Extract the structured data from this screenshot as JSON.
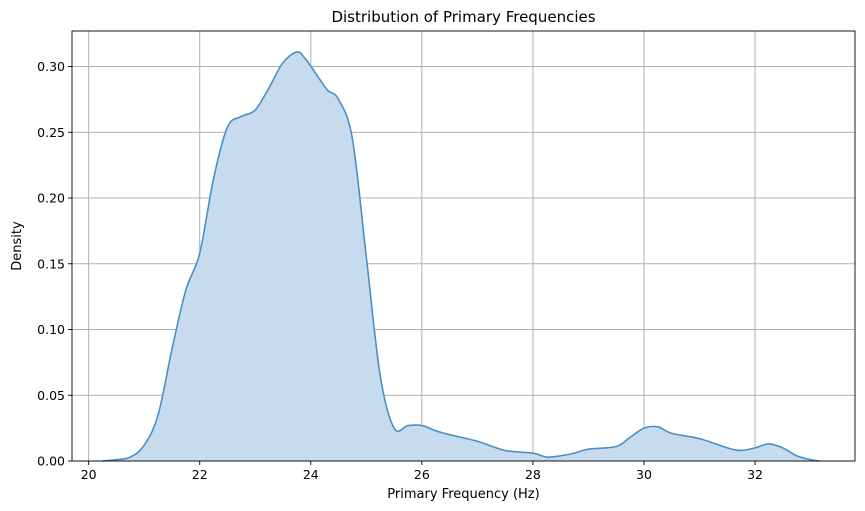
{
  "chart_data": {
    "type": "area",
    "title": "Distribution of Primary Frequencies",
    "xlabel": "Primary Frequency (Hz)",
    "ylabel": "Density",
    "xlim": [
      19.7,
      33.8
    ],
    "ylim": [
      0,
      0.327
    ],
    "x_ticks": [
      "20",
      "22",
      "24",
      "26",
      "28",
      "30",
      "32"
    ],
    "x_tick_values": [
      20,
      22,
      24,
      26,
      28,
      30,
      32
    ],
    "y_ticks": [
      "0.00",
      "0.05",
      "0.10",
      "0.15",
      "0.20",
      "0.25",
      "0.30"
    ],
    "y_tick_values": [
      0,
      0.05,
      0.1,
      0.15,
      0.2,
      0.25,
      0.3
    ],
    "grid": true,
    "line_color": "#4a90c4",
    "fill_color": "#c6dbed",
    "series": [
      {
        "x": [
          20.25,
          20.5,
          20.75,
          21.0,
          21.25,
          21.5,
          21.75,
          22.0,
          22.25,
          22.5,
          22.75,
          23.0,
          23.25,
          23.5,
          23.75,
          23.9,
          24.1,
          24.3,
          24.5,
          24.75,
          25.0,
          25.25,
          25.5,
          25.75,
          26.0,
          26.25,
          26.5,
          27.0,
          27.5,
          28.0,
          28.25,
          28.5,
          28.75,
          29.0,
          29.5,
          29.75,
          30.0,
          30.25,
          30.5,
          31.0,
          31.5,
          31.75,
          32.0,
          32.25,
          32.5,
          32.75,
          33.0,
          33.15
        ],
        "y": [
          0.0,
          0.001,
          0.003,
          0.012,
          0.035,
          0.085,
          0.13,
          0.158,
          0.215,
          0.254,
          0.262,
          0.267,
          0.284,
          0.303,
          0.311,
          0.306,
          0.294,
          0.282,
          0.275,
          0.245,
          0.155,
          0.065,
          0.025,
          0.027,
          0.027,
          0.023,
          0.02,
          0.015,
          0.008,
          0.006,
          0.003,
          0.004,
          0.006,
          0.009,
          0.011,
          0.018,
          0.025,
          0.026,
          0.021,
          0.017,
          0.01,
          0.008,
          0.01,
          0.013,
          0.01,
          0.004,
          0.001,
          0.0
        ]
      }
    ]
  }
}
